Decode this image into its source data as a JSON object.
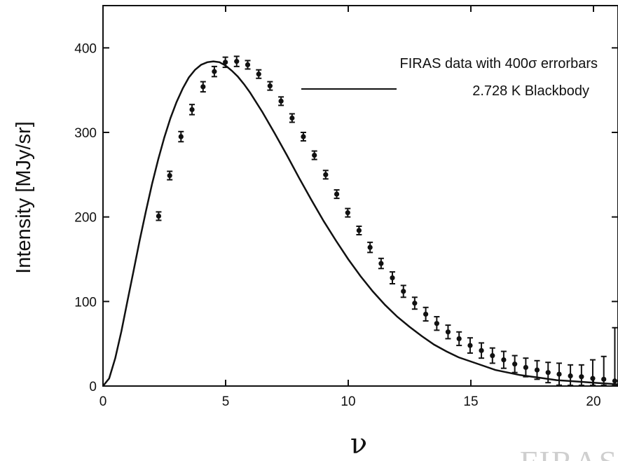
{
  "chart_data": {
    "type": "scatter",
    "title": "",
    "xlabel": "ν",
    "ylabel": "Intensity [MJy/sr]",
    "xlim": [
      0,
      21
    ],
    "ylim": [
      0,
      450
    ],
    "x_ticks": [
      0,
      5,
      10,
      15,
      20
    ],
    "y_ticks": [
      0,
      100,
      200,
      300,
      400
    ],
    "grid": false,
    "legend": {
      "placement": "top-right"
    },
    "series": [
      {
        "name": "FIRAS data with 400σ errorbars",
        "kind": "points-with-errorbars",
        "x": [
          2.27,
          2.72,
          3.18,
          3.63,
          4.08,
          4.54,
          4.99,
          5.45,
          5.9,
          6.35,
          6.81,
          7.26,
          7.71,
          8.17,
          8.62,
          9.08,
          9.53,
          9.98,
          10.44,
          10.89,
          11.34,
          11.8,
          12.25,
          12.71,
          13.16,
          13.61,
          14.07,
          14.52,
          14.97,
          15.43,
          15.88,
          16.34,
          16.79,
          17.24,
          17.7,
          18.15,
          18.6,
          19.06,
          19.51,
          19.97,
          20.42,
          20.87
        ],
        "y": [
          201,
          249,
          295,
          327,
          354,
          372,
          383,
          384,
          380,
          369,
          355,
          337,
          317,
          295,
          273,
          250,
          227,
          205,
          184,
          164,
          145,
          128,
          112,
          98,
          85,
          74,
          64,
          56,
          48,
          42,
          36,
          31,
          26,
          22,
          19,
          16,
          14,
          12,
          11,
          9,
          8,
          6
        ],
        "err": [
          5,
          5,
          6,
          6,
          6,
          6,
          6,
          6,
          5,
          5,
          5,
          5,
          5,
          5,
          5,
          5,
          5,
          5,
          5,
          6,
          6,
          7,
          7,
          7,
          8,
          8,
          8,
          8,
          9,
          9,
          9,
          10,
          10,
          11,
          11,
          12,
          13,
          13,
          14,
          22,
          27,
          63
        ]
      },
      {
        "name": "2.728 K Blackbody",
        "kind": "line",
        "temperature_K": 2.728,
        "x": [
          0.0,
          0.25,
          0.5,
          0.75,
          1.0,
          1.25,
          1.5,
          1.75,
          2.0,
          2.25,
          2.5,
          2.75,
          3.0,
          3.25,
          3.5,
          3.75,
          4.0,
          4.25,
          4.5,
          4.75,
          5.0,
          5.25,
          5.5,
          5.75,
          6.0,
          6.5,
          7.0,
          7.5,
          8.0,
          8.5,
          9.0,
          9.5,
          10.0,
          10.5,
          11.0,
          11.5,
          12.0,
          12.5,
          13.0,
          13.5,
          14.0,
          14.5,
          15.0,
          15.5,
          16.0,
          16.5,
          17.0,
          17.5,
          18.0,
          18.5,
          19.0,
          19.5,
          20.0,
          20.5,
          21.0
        ],
        "y": [
          0,
          9,
          33,
          65,
          101,
          137,
          173,
          207,
          239,
          268,
          294,
          317,
          336,
          352,
          365,
          374,
          380,
          383,
          384,
          383,
          379,
          373,
          366,
          357,
          347,
          324,
          299,
          273,
          246,
          220,
          195,
          172,
          150,
          130,
          112,
          96,
          82,
          70,
          59,
          49,
          41,
          34,
          29,
          24,
          19,
          16,
          13,
          11,
          9,
          7,
          6,
          5,
          4,
          3,
          2
        ]
      }
    ],
    "legend_entries": [
      {
        "label": "FIRAS data with 400σ errorbars"
      },
      {
        "label": "2.728 K Blackbody"
      }
    ],
    "watermark": "FIRAS"
  }
}
